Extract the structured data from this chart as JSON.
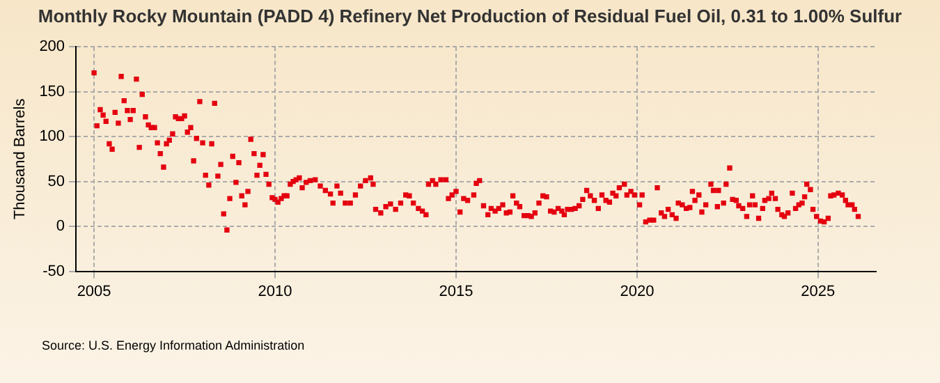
{
  "chart_data": {
    "type": "scatter",
    "title": "Monthly Rocky Mountain (PADD 4) Refinery Net Production of Residual Fuel Oil, 0.31 to 1.00% Sulfur",
    "ylabel": "Thousand Barrels",
    "annotations": [
      "Source: U.S. Energy Information Administration"
    ],
    "marker": "square",
    "grid": true,
    "xlim": [
      2004.5,
      2026.6
    ],
    "xticks": [
      2005,
      2010,
      2015,
      2020,
      2025
    ],
    "ylim": [
      -50,
      200
    ],
    "yticks": [
      -50,
      0,
      50,
      100,
      150,
      200
    ],
    "series": [
      {
        "color": "#e4000f",
        "x": [
          2005.0,
          2005.08,
          2005.17,
          2005.25,
          2005.33,
          2005.42,
          2005.5,
          2005.58,
          2005.67,
          2005.75,
          2005.83,
          2005.92,
          2006.0,
          2006.08,
          2006.17,
          2006.25,
          2006.33,
          2006.42,
          2006.5,
          2006.58,
          2006.67,
          2006.75,
          2006.83,
          2006.92,
          2007.0,
          2007.08,
          2007.17,
          2007.25,
          2007.33,
          2007.42,
          2007.5,
          2007.58,
          2007.67,
          2007.75,
          2007.83,
          2007.92,
          2008.0,
          2008.08,
          2008.17,
          2008.25,
          2008.33,
          2008.42,
          2008.5,
          2008.58,
          2008.67,
          2008.75,
          2008.83,
          2008.92,
          2009.0,
          2009.08,
          2009.17,
          2009.25,
          2009.33,
          2009.42,
          2009.5,
          2009.58,
          2009.67,
          2009.75,
          2009.83,
          2009.92,
          2010.0,
          2010.08,
          2010.17,
          2010.25,
          2010.33,
          2010.42,
          2010.5,
          2010.58,
          2010.67,
          2010.75,
          2010.86,
          2010.97,
          2011.11,
          2011.25,
          2011.39,
          2011.53,
          2011.6,
          2011.71,
          2011.81,
          2011.94,
          2012.08,
          2012.22,
          2012.36,
          2012.5,
          2012.64,
          2012.71,
          2012.78,
          2012.92,
          2013.06,
          2013.19,
          2013.33,
          2013.47,
          2013.61,
          2013.71,
          2013.82,
          2013.96,
          2014.07,
          2014.17,
          2014.24,
          2014.35,
          2014.44,
          2014.58,
          2014.72,
          2014.79,
          2014.89,
          2015.0,
          2015.11,
          2015.21,
          2015.32,
          2015.49,
          2015.56,
          2015.65,
          2015.76,
          2015.88,
          2015.97,
          2016.08,
          2016.18,
          2016.29,
          2016.39,
          2016.49,
          2016.57,
          2016.67,
          2016.76,
          2016.88,
          2016.99,
          2017.08,
          2017.18,
          2017.29,
          2017.4,
          2017.5,
          2017.61,
          2017.71,
          2017.82,
          2017.92,
          2017.99,
          2018.08,
          2018.19,
          2018.29,
          2018.4,
          2018.5,
          2018.61,
          2018.71,
          2018.82,
          2018.93,
          2019.03,
          2019.14,
          2019.24,
          2019.33,
          2019.42,
          2019.51,
          2019.65,
          2019.72,
          2019.83,
          2019.93,
          2020.07,
          2020.14,
          2020.24,
          2020.35,
          2020.46,
          2020.56,
          2020.67,
          2020.76,
          2020.86,
          2020.97,
          2021.08,
          2021.14,
          2021.25,
          2021.36,
          2021.46,
          2021.53,
          2021.6,
          2021.71,
          2021.79,
          2021.9,
          2022.04,
          2022.11,
          2022.22,
          2022.25,
          2022.39,
          2022.46,
          2022.56,
          2022.64,
          2022.74,
          2022.81,
          2022.92,
          2023.03,
          2023.11,
          2023.19,
          2023.26,
          2023.36,
          2023.47,
          2023.53,
          2023.64,
          2023.72,
          2023.82,
          2023.89,
          2024.0,
          2024.07,
          2024.17,
          2024.29,
          2024.38,
          2024.47,
          2024.56,
          2024.63,
          2024.69,
          2024.79,
          2024.86,
          2024.96,
          2025.07,
          2025.17,
          2025.28,
          2025.35,
          2025.44,
          2025.56,
          2025.67,
          2025.76,
          2025.83,
          2025.94,
          2026.01,
          2026.11
        ],
        "values": [
          171,
          112,
          130,
          124,
          117,
          92,
          86,
          127,
          115,
          167,
          140,
          129,
          119,
          129,
          164,
          88,
          147,
          122,
          113,
          110,
          110,
          93,
          81,
          66,
          92,
          96,
          103,
          122,
          120,
          120,
          123,
          105,
          110,
          73,
          98,
          139,
          93,
          57,
          46,
          92,
          137,
          56,
          69,
          14,
          -4,
          31,
          78,
          49,
          71,
          34,
          24,
          39,
          97,
          81,
          57,
          68,
          80,
          58,
          47,
          32,
          30,
          27,
          31,
          34,
          34,
          47,
          50,
          52,
          54,
          43,
          49,
          51,
          52,
          45,
          40,
          36,
          26,
          45,
          37,
          26,
          26,
          35,
          45,
          51,
          54,
          47,
          19,
          15,
          22,
          25,
          19,
          26,
          35,
          34,
          26,
          20,
          17,
          13,
          47,
          51,
          47,
          52,
          52,
          31,
          35,
          39,
          16,
          31,
          29,
          35,
          48,
          51,
          23,
          13,
          20,
          17,
          20,
          24,
          15,
          16,
          34,
          26,
          22,
          12,
          12,
          11,
          15,
          26,
          34,
          33,
          17,
          16,
          20,
          17,
          13,
          19,
          19,
          20,
          23,
          30,
          40,
          34,
          29,
          20,
          35,
          29,
          27,
          37,
          34,
          43,
          47,
          35,
          39,
          35,
          24,
          35,
          5,
          7,
          7,
          43,
          15,
          11,
          19,
          13,
          9,
          26,
          24,
          20,
          21,
          39,
          29,
          35,
          16,
          24,
          47,
          40,
          22,
          40,
          26,
          47,
          65,
          30,
          29,
          23,
          20,
          11,
          24,
          34,
          24,
          9,
          20,
          29,
          31,
          37,
          31,
          19,
          13,
          11,
          15,
          37,
          20,
          24,
          26,
          33,
          47,
          41,
          19,
          11,
          6,
          5,
          9,
          34,
          35,
          37,
          35,
          29,
          24,
          24,
          19,
          11
        ]
      }
    ]
  }
}
